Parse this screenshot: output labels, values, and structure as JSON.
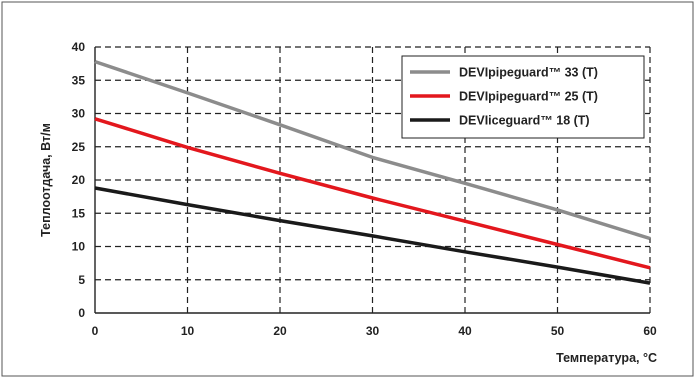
{
  "chart_data": {
    "type": "line",
    "xlabel": "Температура, °С",
    "ylabel": "Теплоотдача, Вт/м",
    "xlim": [
      0,
      60
    ],
    "ylim": [
      0,
      40
    ],
    "xticks": [
      "0",
      "10",
      "20",
      "30",
      "40",
      "50",
      "60"
    ],
    "yticks": [
      "0",
      "5",
      "10",
      "15",
      "20",
      "25",
      "30",
      "35",
      "40"
    ],
    "grid": true,
    "grid_style": "dashed",
    "legend_position": "top-right",
    "series": [
      {
        "name": "DEVIpipeguard™ 33 (T)",
        "color": "#8c8c8c",
        "x": [
          0,
          10,
          20,
          30,
          40,
          50,
          60
        ],
        "y": [
          37.8,
          33.1,
          28.3,
          23.4,
          19.5,
          15.5,
          11.2
        ]
      },
      {
        "name": "DEVIpipeguard™ 25 (T)",
        "color": "#e3171d",
        "x": [
          0,
          10,
          20,
          30,
          40,
          50,
          60
        ],
        "y": [
          29.2,
          24.9,
          21.0,
          17.3,
          13.8,
          10.3,
          6.8
        ]
      },
      {
        "name": "DEVIiceguard™ 18 (T)",
        "color": "#1a1a1a",
        "x": [
          0,
          10,
          20,
          30,
          40,
          50,
          60
        ],
        "y": [
          18.8,
          16.3,
          13.9,
          11.6,
          9.2,
          6.9,
          4.5
        ]
      }
    ]
  }
}
